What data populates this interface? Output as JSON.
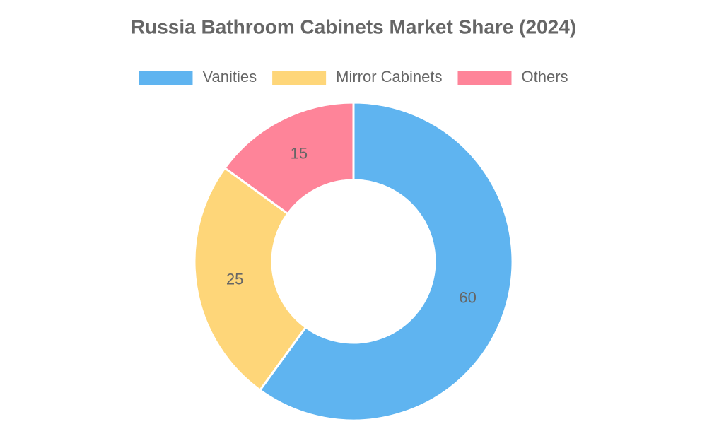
{
  "chart_data": {
    "type": "donut",
    "title": "Russia Bathroom Cabinets Market Share (2024)",
    "categories": [
      "Vanities",
      "Mirror Cabinets",
      "Others"
    ],
    "values": [
      60,
      25,
      15
    ],
    "colors": [
      "#5fb4f0",
      "#fed679",
      "#fe8499"
    ],
    "legend": "top"
  }
}
